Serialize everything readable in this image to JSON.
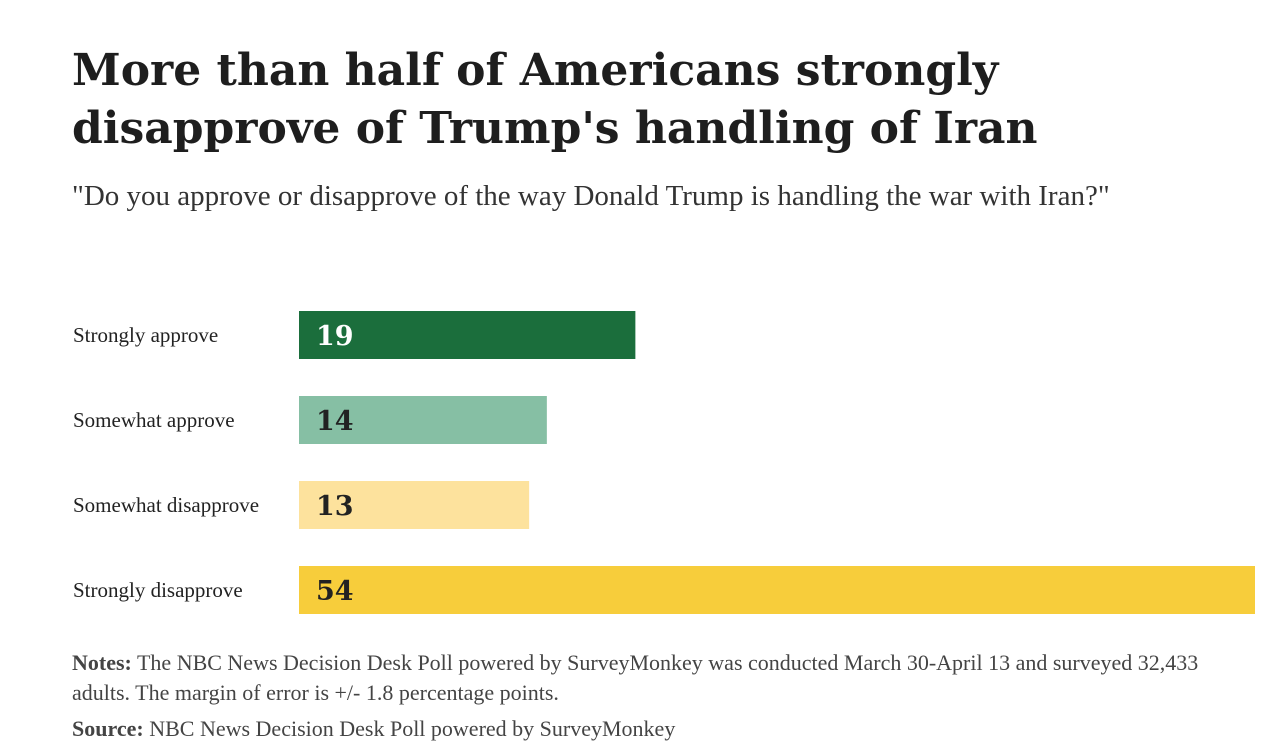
{
  "title": "More than half of Americans strongly disapprove of Trump's handling of Iran",
  "subtitle": "\"Do you approve or disapprove of the way Donald Trump is handling the war with Iran?\"",
  "notes_label": "Notes:",
  "notes_text": "The NBC News Decision Desk Poll powered by SurveyMonkey was conducted March 30-April 13 and surveyed 32,433 adults. The margin of error is +/- 1.8 percentage points.",
  "source_label": "Source:",
  "source_text": "NBC News Decision Desk Poll powered by SurveyMonkey",
  "chart_data": {
    "type": "bar",
    "orientation": "horizontal",
    "categories": [
      "Strongly approve",
      "Somewhat approve",
      "Somewhat disapprove",
      "Strongly disapprove"
    ],
    "values": [
      19,
      14,
      13,
      54
    ],
    "colors": [
      "#1b6e3c",
      "#86bfa4",
      "#fde29d",
      "#f7cd3b"
    ],
    "value_label_colors": [
      "#ffffff",
      "#222222",
      "#222222",
      "#222222"
    ],
    "xlim": [
      0,
      54
    ],
    "grid": false,
    "legend": "none"
  }
}
